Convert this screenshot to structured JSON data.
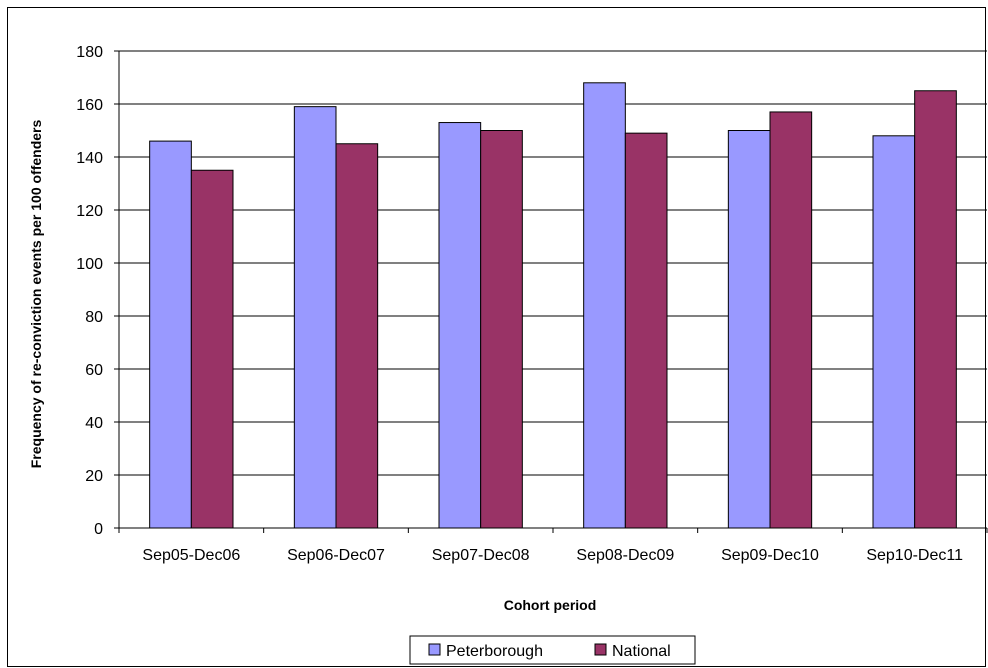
{
  "chart_data": {
    "type": "bar",
    "categories": [
      "Sep05-Dec06",
      "Sep06-Dec07",
      "Sep07-Dec08",
      "Sep08-Dec09",
      "Sep09-Dec10",
      "Sep10-Dec11"
    ],
    "series": [
      {
        "name": "Peterborough",
        "values": [
          146,
          159,
          153,
          168,
          150,
          148
        ],
        "color": "#9999ff"
      },
      {
        "name": "National",
        "values": [
          135,
          145,
          150,
          149,
          157,
          165
        ],
        "color": "#993366"
      }
    ],
    "title": "",
    "xlabel": "Cohort period",
    "ylabel": "Frequency of re-conviction events per 100 offenders",
    "ylim": [
      0,
      180
    ],
    "yticks": [
      "0",
      "20",
      "40",
      "60",
      "80",
      "100",
      "120",
      "140",
      "160",
      "180"
    ],
    "grid": true,
    "legend_position": "bottom"
  }
}
